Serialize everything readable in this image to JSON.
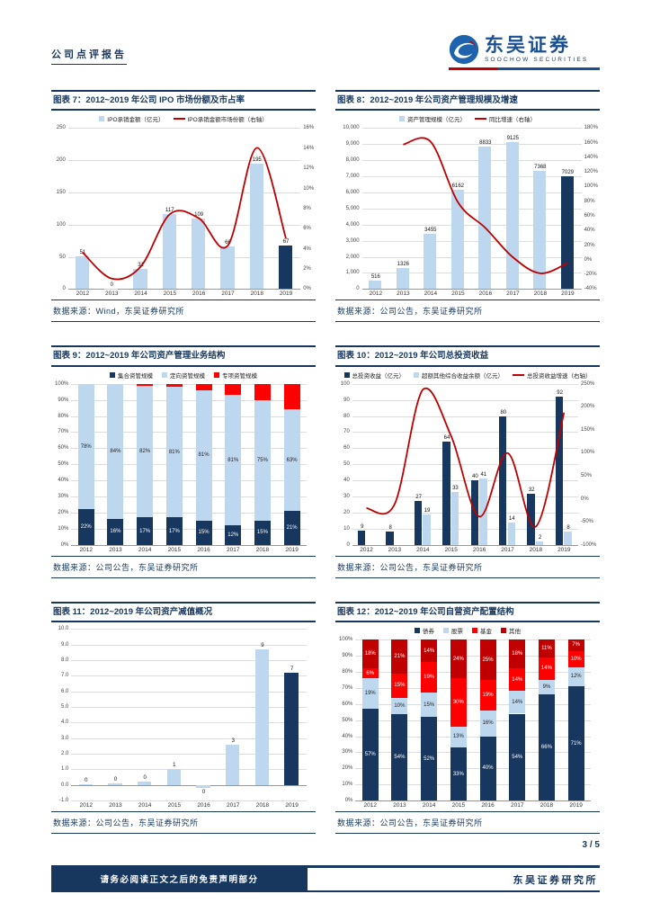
{
  "page": {
    "header": {
      "report_type": "公司点评报告",
      "brand_cn": "东吴证券",
      "brand_en": "SOOCHOW SECURITIES"
    },
    "footer": {
      "page_number": "3 / 5",
      "disclaimer": "请务必阅读正文之后的免责声明部分",
      "institute": "东吴证券研究所"
    }
  },
  "colors": {
    "navy": "#17375E",
    "light_blue": "#BDD7EE",
    "line_red": "#C00000",
    "bright_red": "#FF0000",
    "dark_red": "#C00000"
  },
  "chart_data": [
    {
      "type": "bar-line",
      "title": "图表 7：2012~2019 年公司 IPO 市场份额及市占率",
      "source": "数据来源：Wind，东吴证券研究所",
      "categories": [
        "2012",
        "2013",
        "2014",
        "2015",
        "2016",
        "2017",
        "2018",
        "2019"
      ],
      "bar_series": [
        {
          "name": "IPO承销金额（亿元）",
          "color": "#BDD7EE",
          "last_color": "#17375E",
          "values": [
            51,
            0,
            31,
            117,
            109,
            66,
            195,
            67
          ],
          "labels": [
            "51",
            "0",
            "31",
            "117",
            "109",
            "66",
            "195",
            "67"
          ]
        }
      ],
      "line_series": [
        {
          "name": "IPO承销金额市场份额（右轴）",
          "color": "#C00000",
          "values": [
            3.6,
            1.0,
            2.2,
            7.4,
            7.0,
            4.3,
            14.0,
            5.0
          ]
        }
      ],
      "left_axis": {
        "min": 0,
        "max": 250,
        "labels": [
          "0",
          "50",
          "100",
          "150",
          "200",
          "250"
        ]
      },
      "right_axis": {
        "min": 0,
        "max": 16,
        "labels": [
          "0%",
          "2%",
          "4%",
          "6%",
          "8%",
          "10%",
          "12%",
          "14%",
          "16%"
        ]
      }
    },
    {
      "type": "bar-line",
      "title": "图表 8：2012~2019 年公司资产管理规模及增速",
      "source": "数据来源：公司公告，东吴证券研究所",
      "categories": [
        "2012",
        "2013",
        "2014",
        "2015",
        "2016",
        "2017",
        "2018",
        "2019"
      ],
      "bar_series": [
        {
          "name": "资产管理规模（亿元）",
          "color": "#BDD7EE",
          "last_color": "#17375E",
          "values": [
            516,
            1326,
            3455,
            6162,
            8833,
            9125,
            7368,
            7029
          ],
          "labels": [
            "516",
            "1326",
            "3455",
            "6162",
            "8833",
            "9125",
            "7368",
            "7029"
          ]
        }
      ],
      "line_series": [
        {
          "name": "同比增速（右轴）",
          "color": "#C00000",
          "values": [
            null,
            157,
            161,
            78,
            43,
            3,
            -19,
            -5
          ]
        }
      ],
      "left_axis": {
        "min": 0,
        "max": 10000,
        "labels": [
          "0",
          "1,000",
          "2,000",
          "3,000",
          "4,000",
          "5,000",
          "6,000",
          "7,000",
          "8,000",
          "9,000",
          "10,000"
        ]
      },
      "right_axis": {
        "min": -40,
        "max": 180,
        "labels": [
          "-40%",
          "-20%",
          "0%",
          "20%",
          "40%",
          "60%",
          "80%",
          "100%",
          "120%",
          "140%",
          "160%",
          "180%"
        ]
      }
    },
    {
      "type": "stacked-bar",
      "title": "图表 9：2012~2019 年公司资产管理业务结构",
      "source": "数据来源：公司公告，东吴证券研究所",
      "categories": [
        "2012",
        "2013",
        "2014",
        "2015",
        "2016",
        "2017",
        "2018",
        "2019"
      ],
      "label_min": 6,
      "series": [
        {
          "name": "集合资管规模",
          "color": "#17375E",
          "label_color": "#FFFFFF",
          "values": [
            22,
            16,
            17,
            17,
            15,
            12,
            15,
            21
          ]
        },
        {
          "name": "定向资管规模",
          "color": "#BDD7EE",
          "label_color": "#1F1F1F",
          "values": [
            78,
            84,
            82,
            81,
            81,
            81,
            75,
            63
          ]
        },
        {
          "name": "专项资管规模",
          "color": "#FF0000",
          "label_color": "#FFFFFF",
          "show_labels": false,
          "values": [
            0,
            0,
            1,
            2,
            4,
            7,
            10,
            16
          ]
        }
      ],
      "left_axis": {
        "min": 0,
        "max": 100,
        "labels": [
          "0%",
          "10%",
          "20%",
          "30%",
          "40%",
          "50%",
          "60%",
          "70%",
          "80%",
          "90%",
          "100%"
        ]
      }
    },
    {
      "type": "bar-line",
      "title": "图表 10：2012~2019 年公司总投资收益",
      "source": "数据来源：公司公告，东吴证券研究所",
      "categories": [
        "2012",
        "2013",
        "2014",
        "2015",
        "2016",
        "2017",
        "2018",
        "2019"
      ],
      "bar_series": [
        {
          "name": "总投资收益（亿元）",
          "color": "#17375E",
          "values": [
            9,
            8,
            27,
            64,
            40,
            80,
            32,
            92
          ],
          "labels": [
            "9",
            "8",
            "27",
            "64",
            "40",
            "80",
            "32",
            "92"
          ]
        },
        {
          "name": "超额其他综合收益余额（亿元）",
          "color": "#BDD7EE",
          "values": [
            null,
            null,
            19,
            33,
            41,
            14,
            2,
            8
          ],
          "labels": [
            "",
            "",
            "19",
            "33",
            "41",
            "14",
            "2",
            "8"
          ]
        }
      ],
      "line_series": [
        {
          "name": "总投资收益增速（右轴）",
          "color": "#C00000",
          "values": [
            -20,
            -11,
            238,
            137,
            -38,
            100,
            -60,
            188
          ]
        }
      ],
      "left_axis": {
        "min": 0,
        "max": 100,
        "labels": [
          "0",
          "10",
          "20",
          "30",
          "40",
          "50",
          "60",
          "70",
          "80",
          "90",
          "100"
        ]
      },
      "right_axis": {
        "min": -100,
        "max": 250,
        "labels": [
          "-100%",
          "-50%",
          "0%",
          "50%",
          "100%",
          "150%",
          "200%",
          "250%"
        ]
      }
    },
    {
      "type": "bar",
      "title": "图表 11：2012~2019 年公司资产减值概况",
      "source": "数据来源：公司公告，东吴证券研究所",
      "categories": [
        "2012",
        "2013",
        "2014",
        "2015",
        "2016",
        "2017",
        "2018",
        "2019"
      ],
      "bar_series": [
        {
          "name": "",
          "color": "#BDD7EE",
          "last_color": "#17375E",
          "values": [
            0.05,
            0.1,
            0.2,
            1,
            -0.2,
            2.6,
            8.7,
            7.2
          ],
          "labels": [
            "0",
            "0",
            "0",
            "1",
            "0",
            "3",
            "9",
            "7"
          ]
        }
      ],
      "left_axis": {
        "min": -1,
        "max": 10,
        "labels": [
          "-1.0",
          "0.0",
          "1.0",
          "2.0",
          "3.0",
          "4.0",
          "5.0",
          "6.0",
          "7.0",
          "8.0",
          "9.0",
          "10.0"
        ]
      }
    },
    {
      "type": "stacked-bar",
      "title": "图表 12：2012~2019 年公司自营资产配置结构",
      "source": "数据来源：公司公告，东吴证券研究所",
      "categories": [
        "2012",
        "2013",
        "2014",
        "2015",
        "2016",
        "2017",
        "2018",
        "2019"
      ],
      "label_min": 6,
      "series": [
        {
          "name": "债券",
          "color": "#17375E",
          "label_color": "#FFFFFF",
          "values": [
            57,
            54,
            52,
            33,
            40,
            54,
            66,
            71
          ]
        },
        {
          "name": "股票",
          "color": "#BDD7EE",
          "label_color": "#1F1F1F",
          "values": [
            19,
            10,
            15,
            13,
            16,
            14,
            9,
            12
          ]
        },
        {
          "name": "基金",
          "color": "#FF0000",
          "label_color": "#FFFFFF",
          "values": [
            6,
            15,
            19,
            30,
            19,
            14,
            14,
            10
          ]
        },
        {
          "name": "其他",
          "color": "#C00000",
          "label_color": "#FFFFFF",
          "values": [
            18,
            21,
            14,
            24,
            25,
            18,
            11,
            7
          ]
        }
      ],
      "left_axis": {
        "min": 0,
        "max": 100,
        "labels": [
          "0%",
          "10%",
          "20%",
          "30%",
          "40%",
          "50%",
          "60%",
          "70%",
          "80%",
          "90%",
          "100%"
        ]
      }
    }
  ]
}
